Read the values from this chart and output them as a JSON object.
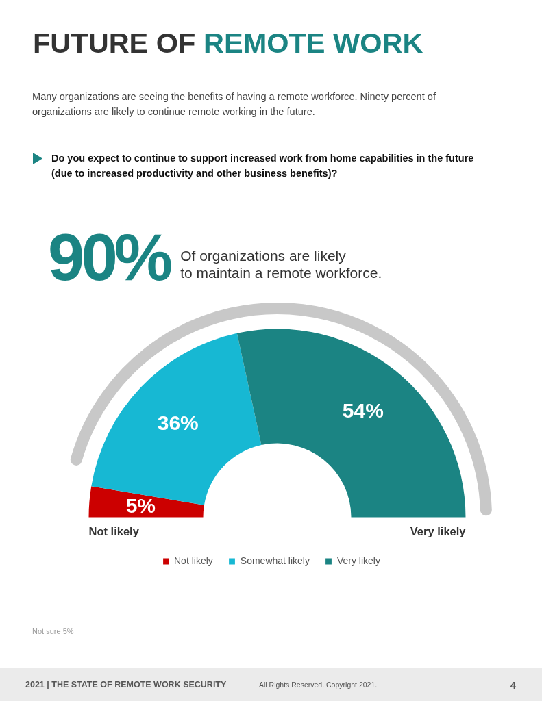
{
  "chart_data": {
    "type": "donut",
    "title": "FUTURE OF REMOTE WORK",
    "subtitle": "Many organizations are seeing the benefits of having a remote workforce. Ninety percent of organizations are likely to continue remote working in the future.",
    "categories": [
      "Not likely",
      "Somewhat likely",
      "Very likely"
    ],
    "values": [
      5,
      36,
      54
    ],
    "colors": [
      "#cc0000",
      "#17b8d3",
      "#1b8483"
    ],
    "value_labels": [
      "5%",
      "36%",
      "54%"
    ],
    "legend": "bottom",
    "annotations": [
      "Do you expect to continue to support increased work from home capabilities in the future (due to increased productivity and other business benefits)?",
      "90%",
      "Of organizations are likely to maintain a remote workforce.",
      "Not likely",
      "Very likely",
      "Not sure 5%",
      "2021 | THE STATE OF REMOTE WORK SECURITY",
      "All Rights Reserved. Copyright 2021.",
      "4"
    ]
  }
}
